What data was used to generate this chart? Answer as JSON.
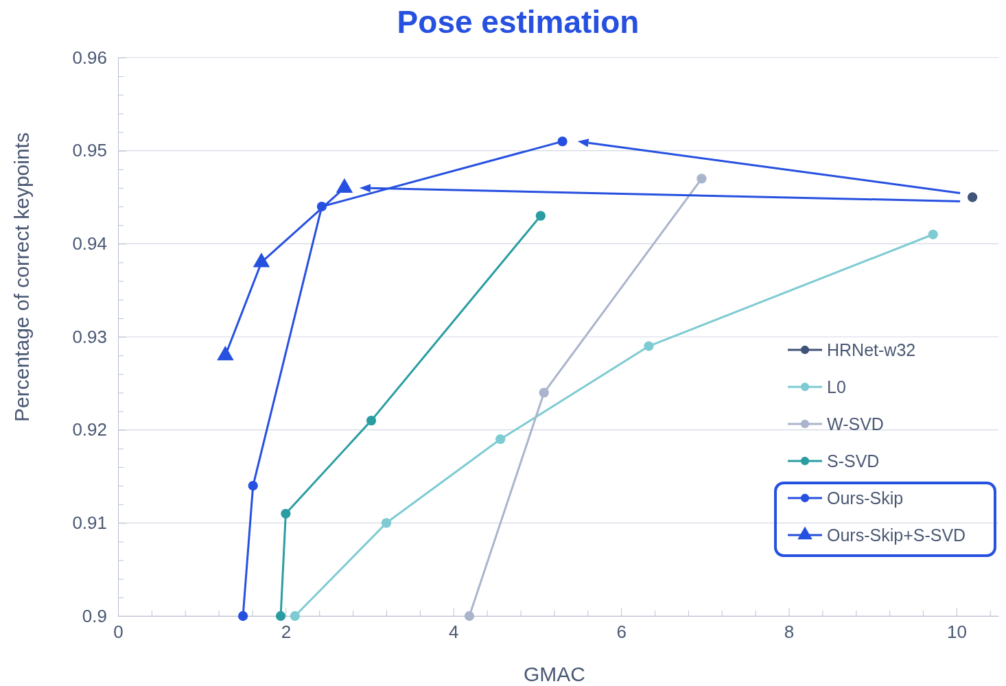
{
  "chart_data": {
    "type": "line",
    "title": "Pose estimation",
    "xlabel": "GMAC",
    "ylabel": "Percentage of correct keypoints",
    "xlim": [
      0,
      10.5
    ],
    "ylim": [
      0.9,
      0.96
    ],
    "xticks": [
      0,
      {
        "value": 0.4,
        "label": null
      },
      {
        "value": 0.8,
        "label": null
      },
      {
        "value": 1.2,
        "label": null
      },
      {
        "value": 1.6,
        "label": null
      },
      2,
      {
        "value": 2.4,
        "label": null
      },
      {
        "value": 2.8,
        "label": null
      },
      {
        "value": 3.2,
        "label": null
      },
      {
        "value": 3.6,
        "label": null
      },
      4,
      {
        "value": 4.4,
        "label": null
      },
      {
        "value": 4.8,
        "label": null
      },
      {
        "value": 5.2,
        "label": null
      },
      {
        "value": 5.6,
        "label": null
      },
      6,
      {
        "value": 6.4,
        "label": null
      },
      {
        "value": 6.8,
        "label": null
      },
      {
        "value": 7.2,
        "label": null
      },
      {
        "value": 7.6,
        "label": null
      },
      8,
      {
        "value": 8.4,
        "label": null
      },
      {
        "value": 8.8,
        "label": null
      },
      {
        "value": 9.2,
        "label": null
      },
      {
        "value": 9.6,
        "label": null
      },
      10,
      {
        "value": 10.4,
        "label": null
      }
    ],
    "yticks": [
      {
        "value": 0.9,
        "label": "0.9"
      },
      {
        "value": 0.902,
        "label": null
      },
      {
        "value": 0.904,
        "label": null
      },
      {
        "value": 0.906,
        "label": null
      },
      {
        "value": 0.908,
        "label": null
      },
      0.91,
      {
        "value": 0.912,
        "label": null
      },
      {
        "value": 0.914,
        "label": null
      },
      {
        "value": 0.916,
        "label": null
      },
      {
        "value": 0.918,
        "label": null
      },
      0.92,
      {
        "value": 0.922,
        "label": null
      },
      {
        "value": 0.924,
        "label": null
      },
      {
        "value": 0.926,
        "label": null
      },
      {
        "value": 0.928,
        "label": null
      },
      0.93,
      {
        "value": 0.932,
        "label": null
      },
      {
        "value": 0.934,
        "label": null
      },
      {
        "value": 0.936,
        "label": null
      },
      {
        "value": 0.938,
        "label": null
      },
      0.94,
      {
        "value": 0.942,
        "label": null
      },
      {
        "value": 0.944,
        "label": null
      },
      {
        "value": 0.946,
        "label": null
      },
      {
        "value": 0.948,
        "label": null
      },
      0.95,
      {
        "value": 0.952,
        "label": null
      },
      {
        "value": 0.954,
        "label": null
      },
      {
        "value": 0.956,
        "label": null
      },
      {
        "value": 0.958,
        "label": null
      },
      0.96
    ],
    "grid": "y",
    "legend": "bottom right",
    "line_style": "solid",
    "series": [
      {
        "name": "HRNet-w32",
        "color": "#3f5478",
        "marker": "circle",
        "x": [
          10.19
        ],
        "values": [
          0.945
        ]
      },
      {
        "name": "L0",
        "color": "#7ecbd3",
        "marker": "circle",
        "x": [
          2.11,
          3.2,
          4.56,
          6.33,
          9.72
        ],
        "values": [
          0.9,
          0.91,
          0.919,
          0.929,
          0.941
        ]
      },
      {
        "name": "W-SVD",
        "color": "#aab4cc",
        "marker": "circle",
        "x": [
          4.19,
          5.08,
          6.96
        ],
        "values": [
          0.9,
          0.924,
          0.947
        ]
      },
      {
        "name": "S-SVD",
        "color": "#2a9da3",
        "marker": "circle",
        "x": [
          1.94,
          2.0,
          3.02,
          5.04
        ],
        "values": [
          0.9,
          0.911,
          0.921,
          0.943
        ]
      },
      {
        "name": "Ours-Skip",
        "color": "#2650e0",
        "marker": "circle",
        "x": [
          1.49,
          1.61,
          2.43,
          5.3
        ],
        "values": [
          0.9,
          0.914,
          0.944,
          0.951
        ]
      },
      {
        "name": "Ours-Skip+S-SVD",
        "color": "#2650e0",
        "marker": "triangle",
        "x": [
          1.28,
          1.71,
          2.7
        ],
        "values": [
          0.928,
          0.938,
          0.946
        ]
      }
    ]
  }
}
